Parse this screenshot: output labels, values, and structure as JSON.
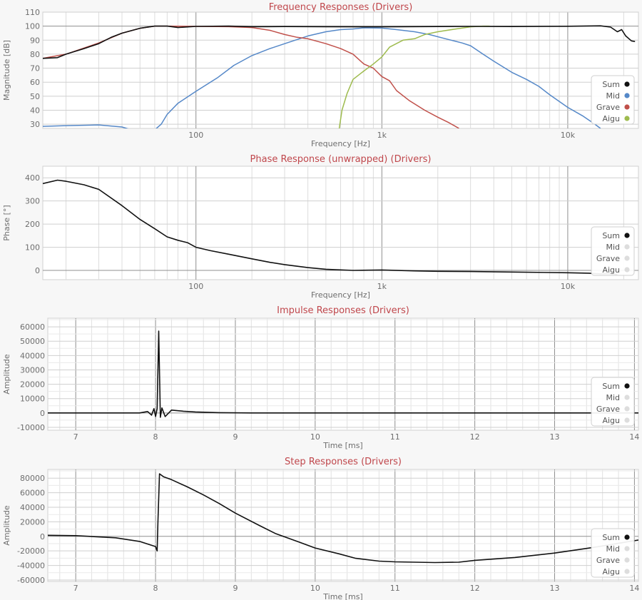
{
  "chart_data": [
    {
      "type": "line",
      "title": "Frequency Responses (Drivers)",
      "xlabel": "Frequency [Hz]",
      "ylabel": "Magnitude [dB]",
      "xscale": "log",
      "xlim": [
        15,
        24000
      ],
      "ylim": [
        27,
        110
      ],
      "x_tick_labels": [
        {
          "value": 100,
          "label": "100"
        },
        {
          "value": 1000,
          "label": "1k"
        },
        {
          "value": 10000,
          "label": "10k"
        }
      ],
      "y_ticks": [
        30,
        40,
        50,
        60,
        70,
        80,
        90,
        100,
        110
      ],
      "grid": true,
      "legend_position": "bottom-right",
      "series": [
        {
          "name": "Sum",
          "color": "#111111",
          "points": [
            [
              15,
              77
            ],
            [
              18,
              77.5
            ],
            [
              20,
              80
            ],
            [
              25,
              84
            ],
            [
              30,
              87.5
            ],
            [
              35,
              92
            ],
            [
              40,
              95
            ],
            [
              50,
              98.5
            ],
            [
              60,
              100
            ],
            [
              70,
              100
            ],
            [
              80,
              99
            ],
            [
              100,
              99.8
            ],
            [
              150,
              100
            ],
            [
              200,
              99.6
            ],
            [
              300,
              99.7
            ],
            [
              500,
              99.6
            ],
            [
              1000,
              99.5
            ],
            [
              2000,
              99.7
            ],
            [
              3000,
              99.8
            ],
            [
              5000,
              99.7
            ],
            [
              10000,
              99.9
            ],
            [
              15000,
              100.2
            ],
            [
              17000,
              99.3
            ],
            [
              18500,
              96
            ],
            [
              19500,
              97.5
            ],
            [
              20500,
              93
            ],
            [
              22000,
              89.5
            ],
            [
              23000,
              89
            ]
          ]
        },
        {
          "name": "Mid",
          "color": "#5588c8",
          "points": [
            [
              15,
              28.5
            ],
            [
              20,
              29
            ],
            [
              30,
              29.5
            ],
            [
              40,
              28
            ],
            [
              45,
              26
            ],
            [
              60,
              26
            ],
            [
              65,
              30
            ],
            [
              70,
              37
            ],
            [
              80,
              45
            ],
            [
              100,
              53.5
            ],
            [
              130,
              63
            ],
            [
              160,
              72
            ],
            [
              200,
              79
            ],
            [
              250,
              84
            ],
            [
              300,
              87.5
            ],
            [
              400,
              93
            ],
            [
              500,
              96
            ],
            [
              600,
              97.5
            ],
            [
              700,
              98
            ],
            [
              800,
              98.8
            ],
            [
              1000,
              98.6
            ],
            [
              1200,
              97.5
            ],
            [
              1500,
              96
            ],
            [
              1800,
              94
            ],
            [
              2200,
              91
            ],
            [
              2700,
              88
            ],
            [
              3000,
              86
            ],
            [
              3500,
              80
            ],
            [
              4000,
              75
            ],
            [
              5000,
              67
            ],
            [
              6000,
              62
            ],
            [
              7000,
              57
            ],
            [
              8000,
              51
            ],
            [
              10000,
              42
            ],
            [
              12000,
              36
            ],
            [
              14000,
              30
            ],
            [
              15000,
              27
            ]
          ]
        },
        {
          "name": "Grave",
          "color": "#c0504a",
          "points": [
            [
              15,
              77
            ],
            [
              20,
              80
            ],
            [
              30,
              88
            ],
            [
              40,
              95
            ],
            [
              50,
              98.5
            ],
            [
              60,
              100
            ],
            [
              70,
              100
            ],
            [
              100,
              99.8
            ],
            [
              150,
              99.6
            ],
            [
              200,
              99
            ],
            [
              250,
              97
            ],
            [
              300,
              94
            ],
            [
              350,
              92
            ],
            [
              400,
              91
            ],
            [
              500,
              87.5
            ],
            [
              600,
              84
            ],
            [
              700,
              80
            ],
            [
              800,
              73
            ],
            [
              900,
              70
            ],
            [
              1000,
              64
            ],
            [
              1100,
              61
            ],
            [
              1200,
              54
            ],
            [
              1400,
              47
            ],
            [
              1700,
              40
            ],
            [
              2000,
              35
            ],
            [
              2300,
              31
            ],
            [
              2600,
              27
            ]
          ]
        },
        {
          "name": "Aigu",
          "color": "#9ebb4e",
          "points": [
            [
              590,
              27
            ],
            [
              610,
              40
            ],
            [
              650,
              52
            ],
            [
              700,
              62
            ],
            [
              800,
              68
            ],
            [
              900,
              73
            ],
            [
              1000,
              78
            ],
            [
              1100,
              85
            ],
            [
              1300,
              90
            ],
            [
              1500,
              91
            ],
            [
              1700,
              94
            ],
            [
              2000,
              96
            ],
            [
              2500,
              98
            ],
            [
              3000,
              99.5
            ],
            [
              3500,
              100
            ],
            [
              3800,
              100
            ]
          ]
        }
      ]
    },
    {
      "type": "line",
      "title": "Phase Response (unwrapped) (Drivers)",
      "xlabel": "Frequency [Hz]",
      "ylabel": "Phase [°]",
      "xscale": "log",
      "xlim": [
        15,
        24000
      ],
      "ylim": [
        -40,
        450
      ],
      "x_tick_labels": [
        {
          "value": 100,
          "label": "100"
        },
        {
          "value": 1000,
          "label": "1k"
        },
        {
          "value": 10000,
          "label": "10k"
        }
      ],
      "y_ticks": [
        0,
        100,
        200,
        300,
        400
      ],
      "grid": true,
      "legend_position": "bottom-right",
      "series": [
        {
          "name": "Sum",
          "color": "#111111",
          "points": [
            [
              15,
              375
            ],
            [
              18,
              390
            ],
            [
              20,
              385
            ],
            [
              25,
              370
            ],
            [
              30,
              350
            ],
            [
              40,
              280
            ],
            [
              50,
              220
            ],
            [
              60,
              180
            ],
            [
              70,
              145
            ],
            [
              80,
              130
            ],
            [
              90,
              120
            ],
            [
              100,
              100
            ],
            [
              120,
              85
            ],
            [
              150,
              70
            ],
            [
              200,
              50
            ],
            [
              250,
              35
            ],
            [
              300,
              25
            ],
            [
              400,
              12
            ],
            [
              500,
              5
            ],
            [
              700,
              0
            ],
            [
              1000,
              2
            ],
            [
              1500,
              -2
            ],
            [
              2000,
              -4
            ],
            [
              3000,
              -5
            ],
            [
              5000,
              -7
            ],
            [
              10000,
              -10
            ],
            [
              13000,
              -12
            ],
            [
              15000,
              -15
            ],
            [
              17000,
              -14
            ],
            [
              18500,
              -18
            ]
          ]
        },
        {
          "name": "Mid",
          "color": "#dddddd",
          "points": []
        },
        {
          "name": "Grave",
          "color": "#dddddd",
          "points": []
        },
        {
          "name": "Aigu",
          "color": "#dddddd",
          "points": []
        }
      ]
    },
    {
      "type": "line",
      "title": "Impulse Responses (Drivers)",
      "xlabel": "Time [ms]",
      "ylabel": "Amplitude",
      "xlim": [
        6.65,
        14.05
      ],
      "ylim": [
        -12000,
        66000
      ],
      "x_ticks": [
        7,
        8,
        9,
        10,
        11,
        12,
        13,
        14
      ],
      "y_ticks": [
        -10000,
        0,
        10000,
        20000,
        30000,
        40000,
        50000,
        60000
      ],
      "grid": true,
      "legend_position": "bottom-right",
      "series": [
        {
          "name": "Sum",
          "color": "#111111",
          "points": [
            [
              6.65,
              0
            ],
            [
              7.8,
              0
            ],
            [
              7.9,
              1000
            ],
            [
              7.95,
              -1500
            ],
            [
              7.98,
              3000
            ],
            [
              8.0,
              -2500
            ],
            [
              8.02,
              3000
            ],
            [
              8.04,
              57000
            ],
            [
              8.06,
              -3000
            ],
            [
              8.08,
              3500
            ],
            [
              8.12,
              -2500
            ],
            [
              8.2,
              2000
            ],
            [
              8.35,
              1200
            ],
            [
              8.5,
              700
            ],
            [
              8.8,
              200
            ],
            [
              9.2,
              0
            ],
            [
              10,
              0
            ],
            [
              14.05,
              0
            ]
          ]
        },
        {
          "name": "Mid",
          "color": "#dddddd",
          "points": []
        },
        {
          "name": "Grave",
          "color": "#dddddd",
          "points": []
        },
        {
          "name": "Aigu",
          "color": "#dddddd",
          "points": []
        }
      ]
    },
    {
      "type": "line",
      "title": "Step Responses (Drivers)",
      "xlabel": "Time [ms]",
      "ylabel": "Amplitude",
      "xlim": [
        6.65,
        14.05
      ],
      "ylim": [
        -62000,
        92000
      ],
      "x_ticks": [
        7,
        8,
        9,
        10,
        11,
        12,
        13,
        14
      ],
      "y_ticks": [
        -60000,
        -40000,
        -20000,
        0,
        20000,
        40000,
        60000,
        80000
      ],
      "grid": true,
      "legend_position": "bottom-right",
      "series": [
        {
          "name": "Sum",
          "color": "#111111",
          "points": [
            [
              6.65,
              1500
            ],
            [
              7.0,
              1000
            ],
            [
              7.5,
              -2000
            ],
            [
              7.8,
              -7000
            ],
            [
              8.0,
              -14000
            ],
            [
              8.02,
              -20000
            ],
            [
              8.03,
              20000
            ],
            [
              8.05,
              86000
            ],
            [
              8.1,
              82000
            ],
            [
              8.2,
              78000
            ],
            [
              8.4,
              68000
            ],
            [
              8.6,
              57000
            ],
            [
              8.8,
              45000
            ],
            [
              9.0,
              32000
            ],
            [
              9.3,
              15000
            ],
            [
              9.5,
              4000
            ],
            [
              9.8,
              -8000
            ],
            [
              10.0,
              -16000
            ],
            [
              10.3,
              -24000
            ],
            [
              10.5,
              -30000
            ],
            [
              10.8,
              -34000
            ],
            [
              11.0,
              -35000
            ],
            [
              11.5,
              -36000
            ],
            [
              11.8,
              -35500
            ],
            [
              12.0,
              -33000
            ],
            [
              12.5,
              -29000
            ],
            [
              13.0,
              -23000
            ],
            [
              13.5,
              -15000
            ],
            [
              14.05,
              -5000
            ]
          ]
        },
        {
          "name": "Mid",
          "color": "#dddddd",
          "points": []
        },
        {
          "name": "Grave",
          "color": "#dddddd",
          "points": []
        },
        {
          "name": "Aigu",
          "color": "#dddddd",
          "points": []
        }
      ]
    }
  ]
}
